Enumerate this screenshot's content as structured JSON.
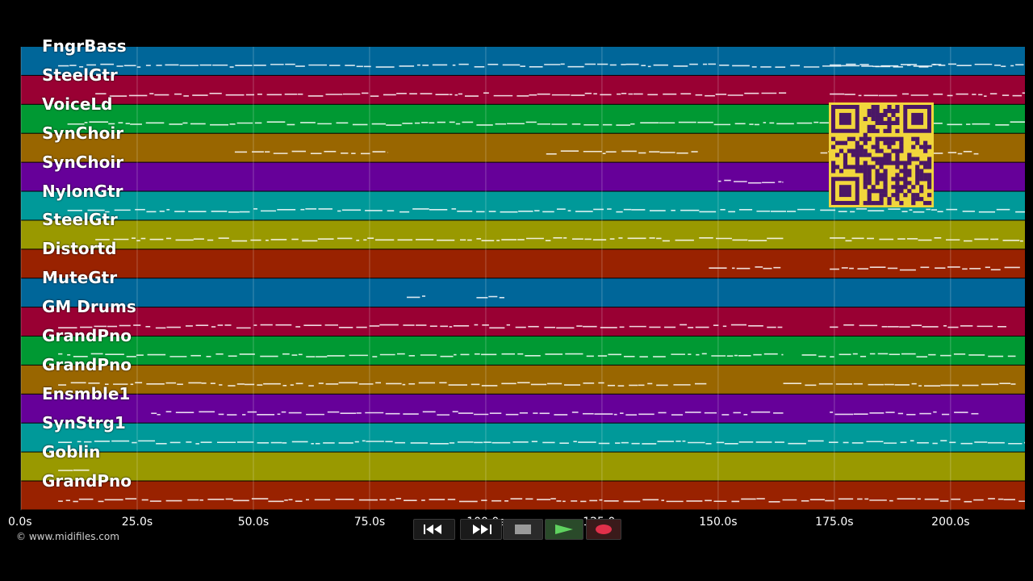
{
  "tracks": [
    {
      "name": "FngrBass",
      "color": "#006699"
    },
    {
      "name": "SteelGtr",
      "color": "#990033"
    },
    {
      "name": "VoiceLd",
      "color": "#009933"
    },
    {
      "name": "SynChoir",
      "color": "#996600"
    },
    {
      "name": "SynChoir",
      "color": "#660099"
    },
    {
      "name": "NylonGtr",
      "color": "#009999"
    },
    {
      "name": "SteelGtr",
      "color": "#999900"
    },
    {
      "name": "Distortd",
      "color": "#992200"
    },
    {
      "name": "MuteGtr",
      "color": "#006699"
    },
    {
      "name": "GM Drums",
      "color": "#990033"
    },
    {
      "name": "GrandPno",
      "color": "#009933"
    },
    {
      "name": "GrandPno",
      "color": "#996600"
    },
    {
      "name": "Ensmble1",
      "color": "#660099"
    },
    {
      "name": "SynStrg1",
      "color": "#009999"
    },
    {
      "name": "Goblin",
      "color": "#999900"
    },
    {
      "name": "GrandPno",
      "color": "#992200"
    }
  ],
  "time_axis": {
    "unit": "s",
    "min": 0,
    "max": 216,
    "ticks": [
      "0.0s",
      "25.0s",
      "50.0s",
      "75.0s",
      "100.0s",
      "125.0s",
      "150.0s",
      "175.0s",
      "200.0s"
    ]
  },
  "copyright": "© www.midifiles.com",
  "transport": {
    "buttons": [
      {
        "name": "rewind-button",
        "icon": "rewind-icon",
        "color": "#ffffff"
      },
      {
        "name": "fast-forward-button",
        "icon": "fast-forward-icon",
        "color": "#ffffff"
      },
      {
        "name": "stop-button",
        "icon": "stop-icon",
        "color": "#9a9a9a"
      },
      {
        "name": "play-button",
        "icon": "play-icon",
        "color": "#5fd35f"
      },
      {
        "name": "record-button",
        "icon": "record-icon",
        "color": "#e0304a"
      }
    ]
  },
  "qr_code": {
    "color": "#f1d63c",
    "module_color": "#4a1766"
  }
}
